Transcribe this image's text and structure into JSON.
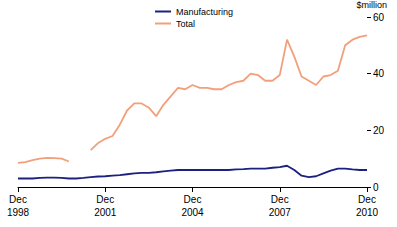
{
  "chart_data": {
    "type": "line",
    "y_label": "$million",
    "categories": [
      "Dec\n1998",
      null,
      null,
      null,
      null,
      null,
      null,
      null,
      null,
      null,
      null,
      null,
      "Dec\n2001",
      null,
      null,
      null,
      null,
      null,
      null,
      null,
      null,
      null,
      null,
      null,
      "Dec\n2004",
      null,
      null,
      null,
      null,
      null,
      null,
      null,
      null,
      null,
      null,
      null,
      "Dec\n2007",
      null,
      null,
      null,
      null,
      null,
      null,
      null,
      null,
      null,
      null,
      null,
      "Dec\n2010"
    ],
    "series": [
      {
        "name": "Manufacturing",
        "color": "#1c2180",
        "values": [
          3,
          3,
          3,
          3.2,
          3.3,
          3.3,
          3.2,
          3,
          3,
          3.2,
          3.5,
          3.7,
          3.8,
          4,
          4.2,
          4.5,
          4.8,
          5,
          5,
          5.2,
          5.5,
          5.8,
          6,
          6,
          6,
          6,
          6,
          6,
          6,
          6,
          6.2,
          6.3,
          6.5,
          6.5,
          6.5,
          6.8,
          7,
          7.5,
          6,
          4,
          3.5,
          3.8,
          4.8,
          5.8,
          6.5,
          6.5,
          6.2,
          6,
          6
        ]
      },
      {
        "name": "Total",
        "color": "#f2a07b",
        "values": [
          8.5,
          8.8,
          9.5,
          10,
          10.3,
          10.2,
          10,
          9,
          null,
          null,
          13,
          15.5,
          17,
          18,
          22,
          27,
          29.5,
          29.5,
          28,
          25,
          29,
          32,
          35,
          34.5,
          36,
          35,
          35,
          34.5,
          34.5,
          36,
          37,
          37.5,
          40,
          39.5,
          37.5,
          37.5,
          39.5,
          52,
          46,
          39,
          37.5,
          36,
          39,
          39.5,
          41,
          50,
          52,
          53,
          53.5
        ]
      }
    ],
    "ylim": [
      0,
      60
    ],
    "yticks": [
      0,
      20,
      40,
      60
    ],
    "grid": false,
    "legend": "top"
  }
}
